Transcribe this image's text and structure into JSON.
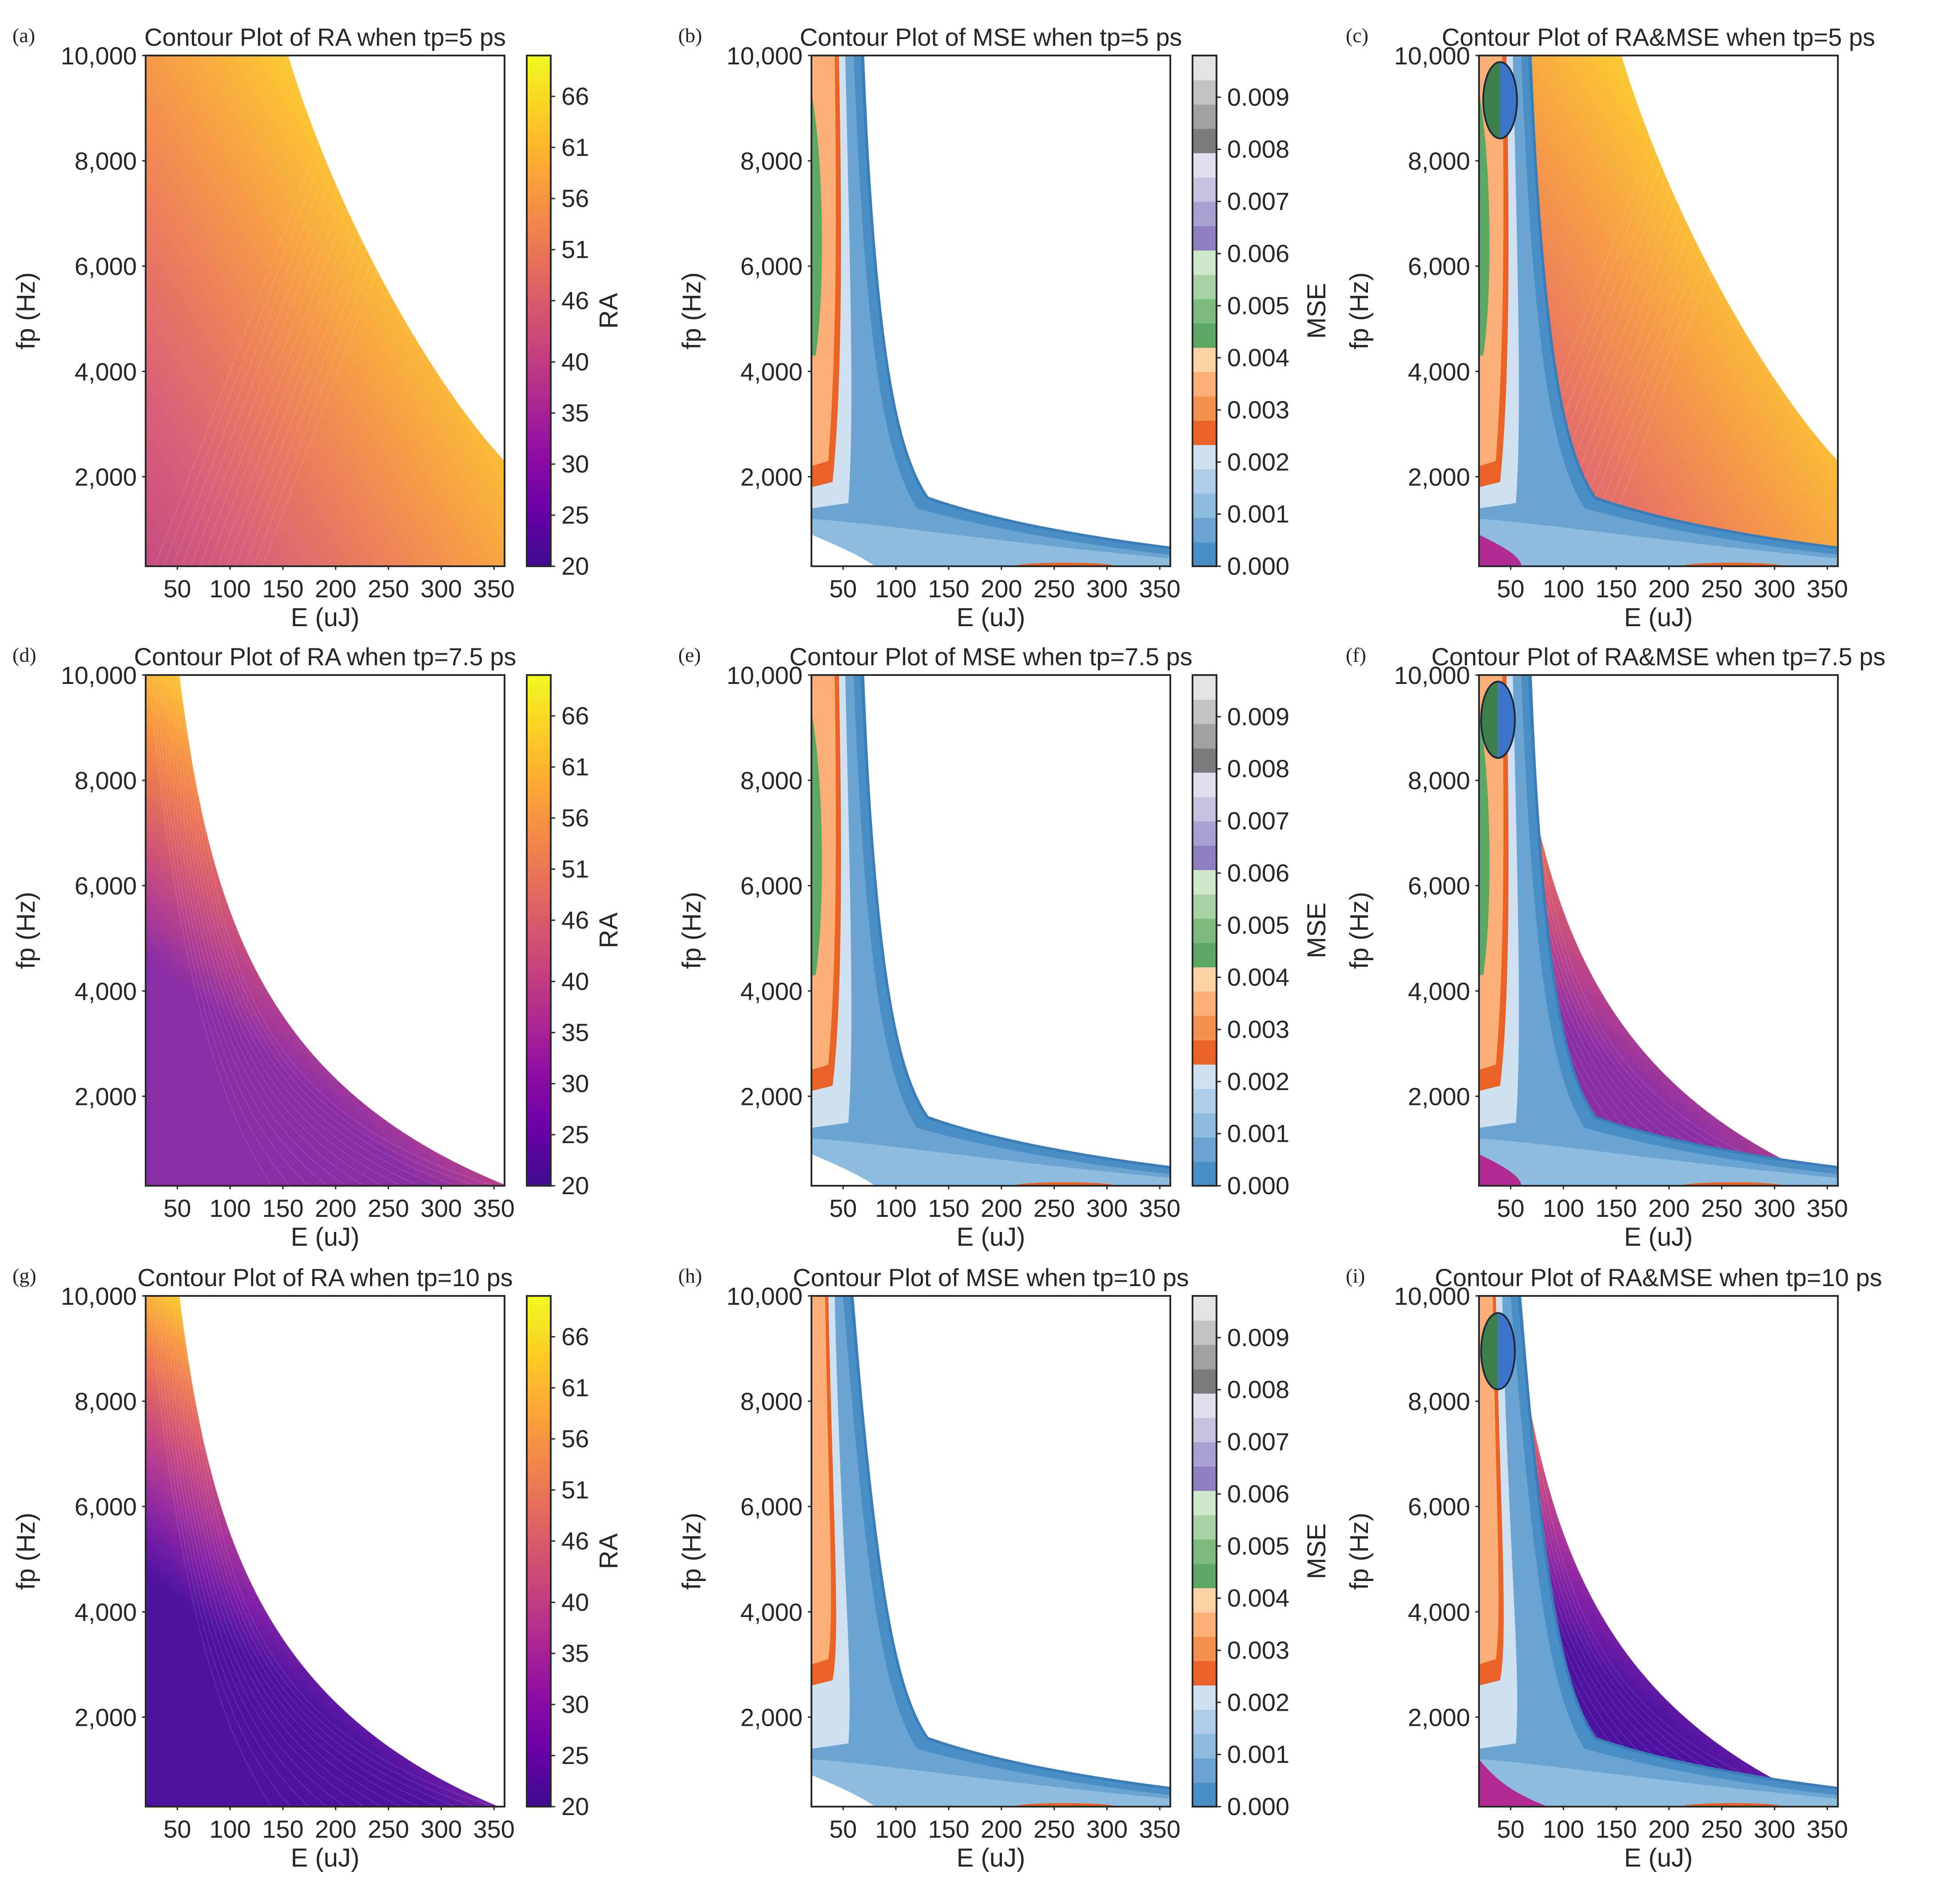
{
  "figure": {
    "colorbars": {
      "ra": {
        "label": "RA",
        "ticks": [
          "20",
          "25",
          "30",
          "35",
          "40",
          "46",
          "51",
          "56",
          "61",
          "66"
        ],
        "tick_values": [
          20,
          25,
          30,
          35,
          40,
          46,
          51,
          56,
          61,
          66
        ],
        "range": [
          20,
          70
        ]
      },
      "mse": {
        "label": "MSE",
        "ticks": [
          "0.000",
          "0.001",
          "0.002",
          "0.003",
          "0.004",
          "0.005",
          "0.006",
          "0.007",
          "0.008",
          "0.009"
        ],
        "tick_values": [
          0,
          0.001,
          0.002,
          0.003,
          0.004,
          0.005,
          0.006,
          0.007,
          0.008,
          0.009
        ],
        "range": [
          0,
          0.0098
        ]
      }
    },
    "colors": {
      "plasma": [
        "#3e0c8f",
        "#6a00a8",
        "#8f0da4",
        "#b12a90",
        "#cc4778",
        "#e16462",
        "#f2844b",
        "#fca636",
        "#fcce25",
        "#f0f921"
      ],
      "mse_bands": [
        "#4a8ec6",
        "#6ba3d1",
        "#8ebcde",
        "#aecde8",
        "#cfe0f0",
        "#ea6326",
        "#f5914f",
        "#fbae75",
        "#fdd0a6",
        "#5aa864",
        "#7dbb7d",
        "#a9d3a4",
        "#cfe7c9",
        "#8e7fbf",
        "#a9a2d0",
        "#c5c2e0",
        "#e1e0ef",
        "#7c7c7c",
        "#a1a1a1",
        "#c3c3c3",
        "#e3e3e3"
      ],
      "ellipse_left": "#3d7f4c",
      "ellipse_right": "#3b74c9"
    },
    "panels": [
      {
        "tag": "(a)",
        "title": "Contour Plot of RA when tp=5 ps",
        "kind": "ra",
        "tp": 5,
        "xlabel": "E (uJ)",
        "ylabel": "fp (Hz)",
        "xticks": [
          "50",
          "100",
          "150",
          "200",
          "250",
          "300",
          "350"
        ],
        "yticks": [
          "2,000",
          "4,000",
          "6,000",
          "8,000",
          "10,000"
        ],
        "colorbar": "ra"
      },
      {
        "tag": "(b)",
        "title": "Contour Plot of MSE when tp=5 ps",
        "kind": "mse",
        "tp": 5,
        "xlabel": "E (uJ)",
        "ylabel": "fp (Hz)",
        "xticks": [
          "50",
          "100",
          "150",
          "200",
          "250",
          "300",
          "350"
        ],
        "yticks": [
          "2,000",
          "4,000",
          "6,000",
          "8,000",
          "10,000"
        ],
        "colorbar": "mse"
      },
      {
        "tag": "(c)",
        "title": "Contour Plot of RA&MSE when tp=5 ps",
        "kind": "combo",
        "tp": 5,
        "xlabel": "E (uJ)",
        "ylabel": "fp (Hz)",
        "xticks": [
          "50",
          "100",
          "150",
          "200",
          "250",
          "300",
          "350"
        ],
        "yticks": [
          "2,000",
          "4,000",
          "6,000",
          "8,000",
          "10,000"
        ],
        "colorbar": null
      },
      {
        "tag": "(d)",
        "title": "Contour Plot of RA when tp=7.5 ps",
        "kind": "ra",
        "tp": 7.5,
        "xlabel": "E (uJ)",
        "ylabel": "fp (Hz)",
        "xticks": [
          "50",
          "100",
          "150",
          "200",
          "250",
          "300",
          "350"
        ],
        "yticks": [
          "2,000",
          "4,000",
          "6,000",
          "8,000",
          "10,000"
        ],
        "colorbar": "ra"
      },
      {
        "tag": "(e)",
        "title": "Contour Plot of MSE when tp=7.5 ps",
        "kind": "mse",
        "tp": 7.5,
        "xlabel": "E (uJ)",
        "ylabel": "fp (Hz)",
        "xticks": [
          "50",
          "100",
          "150",
          "200",
          "250",
          "300",
          "350"
        ],
        "yticks": [
          "2,000",
          "4,000",
          "6,000",
          "8,000",
          "10,000"
        ],
        "colorbar": "mse"
      },
      {
        "tag": "(f)",
        "title": "Contour Plot of RA&MSE when tp=7.5 ps",
        "kind": "combo",
        "tp": 7.5,
        "xlabel": "E (uJ)",
        "ylabel": "fp (Hz)",
        "xticks": [
          "50",
          "100",
          "150",
          "200",
          "250",
          "300",
          "350"
        ],
        "yticks": [
          "2,000",
          "4,000",
          "6,000",
          "8,000",
          "10,000"
        ],
        "colorbar": null
      },
      {
        "tag": "(g)",
        "title": "Contour Plot of RA when tp=10 ps",
        "kind": "ra",
        "tp": 10,
        "xlabel": "E (uJ)",
        "ylabel": "fp (Hz)",
        "xticks": [
          "50",
          "100",
          "150",
          "200",
          "250",
          "300",
          "350"
        ],
        "yticks": [
          "2,000",
          "4,000",
          "6,000",
          "8,000",
          "10,000"
        ],
        "colorbar": "ra"
      },
      {
        "tag": "(h)",
        "title": "Contour Plot of MSE when tp=10 ps",
        "kind": "mse",
        "tp": 10,
        "xlabel": "E (uJ)",
        "ylabel": "fp (Hz)",
        "xticks": [
          "50",
          "100",
          "150",
          "200",
          "250",
          "300",
          "350"
        ],
        "yticks": [
          "2,000",
          "4,000",
          "6,000",
          "8,000",
          "10,000"
        ],
        "colorbar": "mse"
      },
      {
        "tag": "(i)",
        "title": "Contour Plot of RA&MSE when tp=10 ps",
        "kind": "combo",
        "tp": 10,
        "xlabel": "E (uJ)",
        "ylabel": "fp (Hz)",
        "xticks": [
          "50",
          "100",
          "150",
          "200",
          "250",
          "300",
          "350"
        ],
        "yticks": [
          "2,000",
          "4,000",
          "6,000",
          "8,000",
          "10,000"
        ],
        "colorbar": null
      }
    ]
  },
  "chart_data": [
    {
      "type": "heatmap",
      "title": "Contour Plot of RA when tp=5 ps",
      "xlabel": "E (uJ)",
      "ylabel": "fp (Hz)",
      "xlim": [
        20,
        360
      ],
      "ylim": [
        300,
        10000
      ],
      "colorbar_label": "RA",
      "clim": [
        20,
        70
      ],
      "valid_region": "RA <= 70: upper boundary from E≈150 at fp=10,000 to E≈360 at fp≈2,300"
    },
    {
      "type": "heatmap",
      "title": "Contour Plot of MSE when tp=5 ps",
      "xlabel": "E (uJ)",
      "ylabel": "fp (Hz)",
      "xlim": [
        20,
        360
      ],
      "ylim": [
        300,
        10000
      ],
      "colorbar_label": "MSE",
      "clim": [
        0,
        0.0098
      ]
    },
    {
      "type": "heatmap",
      "title": "Contour Plot of RA&MSE when tp=5 ps",
      "xlabel": "E (uJ)",
      "ylabel": "fp (Hz)",
      "xlim": [
        20,
        360
      ],
      "ylim": [
        300,
        10000
      ],
      "optimum_region_center": {
        "E": 40,
        "fp": 9150
      }
    },
    {
      "type": "heatmap",
      "title": "Contour Plot of RA when tp=7.5 ps",
      "xlabel": "E (uJ)",
      "ylabel": "fp (Hz)",
      "xlim": [
        20,
        360
      ],
      "ylim": [
        300,
        10000
      ],
      "colorbar_label": "RA",
      "clim": [
        20,
        70
      ],
      "valid_region": "RA <= 70: upper boundary from E≈50 at fp=10,000 to E≈360 at fp≈300"
    },
    {
      "type": "heatmap",
      "title": "Contour Plot of MSE when tp=7.5 ps",
      "xlabel": "E (uJ)",
      "ylabel": "fp (Hz)",
      "xlim": [
        20,
        360
      ],
      "ylim": [
        300,
        10000
      ],
      "colorbar_label": "MSE",
      "clim": [
        0,
        0.0098
      ]
    },
    {
      "type": "heatmap",
      "title": "Contour Plot of RA&MSE when tp=7.5 ps",
      "xlabel": "E (uJ)",
      "ylabel": "fp (Hz)",
      "xlim": [
        20,
        360
      ],
      "ylim": [
        300,
        10000
      ],
      "optimum_region_center": {
        "E": 38,
        "fp": 9150
      }
    },
    {
      "type": "heatmap",
      "title": "Contour Plot of RA when tp=10 ps",
      "xlabel": "E (uJ)",
      "ylabel": "fp (Hz)",
      "xlim": [
        20,
        360
      ],
      "ylim": [
        300,
        10000
      ],
      "colorbar_label": "RA",
      "clim": [
        20,
        70
      ],
      "valid_region": "RA <= 70: upper boundary from E≈50 at fp=10,000 to E≈350 at fp≈300"
    },
    {
      "type": "heatmap",
      "title": "Contour Plot of MSE when tp=10 ps",
      "xlabel": "E (uJ)",
      "ylabel": "fp (Hz)",
      "xlim": [
        20,
        360
      ],
      "ylim": [
        300,
        10000
      ],
      "colorbar_label": "MSE",
      "clim": [
        0,
        0.0098
      ]
    },
    {
      "type": "heatmap",
      "title": "Contour Plot of RA&MSE when tp=10 ps",
      "xlabel": "E (uJ)",
      "ylabel": "fp (Hz)",
      "xlim": [
        20,
        360
      ],
      "ylim": [
        300,
        10000
      ],
      "optimum_region_center": {
        "E": 38,
        "fp": 8950
      }
    }
  ]
}
